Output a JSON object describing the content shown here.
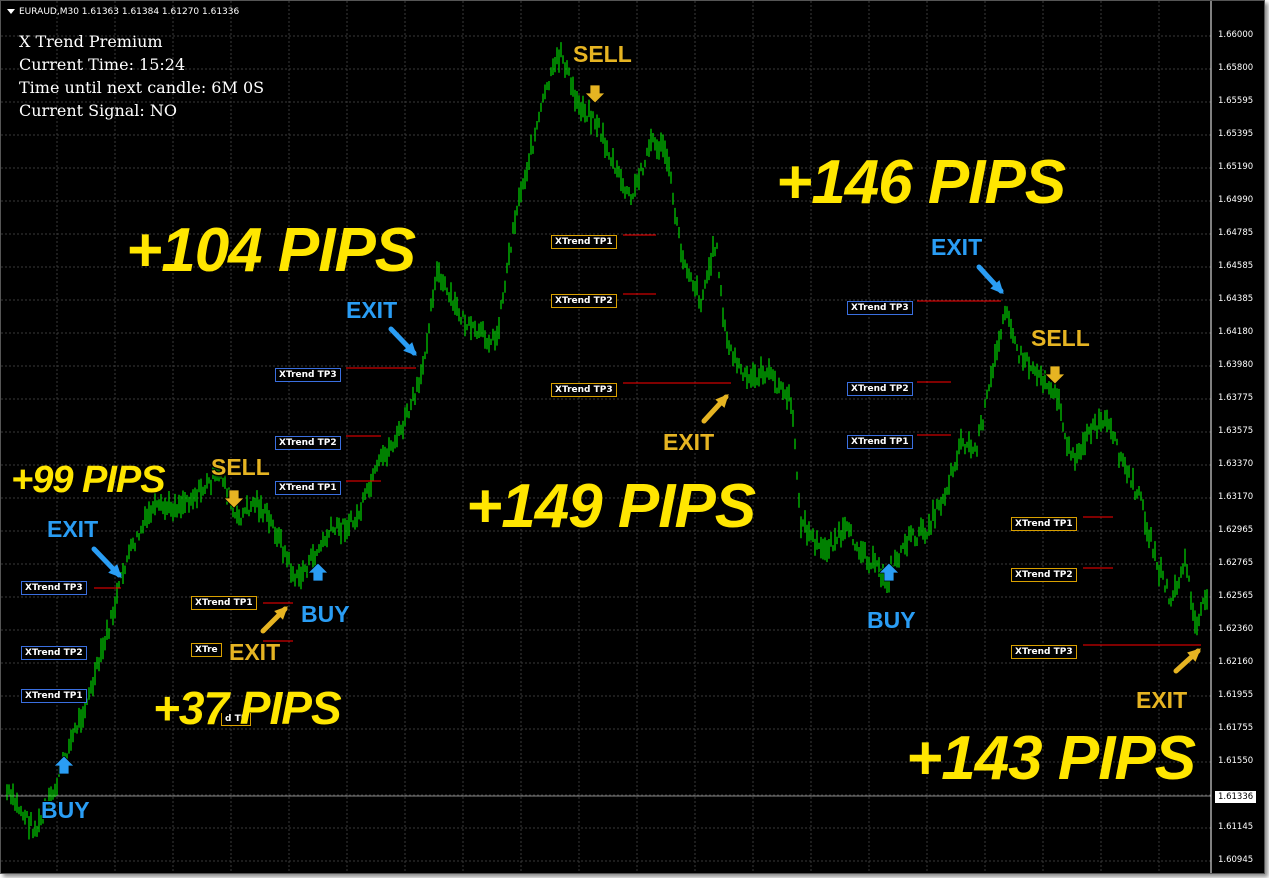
{
  "header": {
    "symbol_line": "EURAUD,M30  1.61363 1.61384 1.61270 1.61336"
  },
  "info": {
    "name": "X Trend Premium",
    "current_time": "Current Time: 15:24",
    "time_until_next": "Time until next candle: 6M 0S",
    "current_signal": "Current Signal:   NO"
  },
  "price_axis": {
    "labels": [
      "1.66000",
      "1.65800",
      "1.65595",
      "1.65395",
      "1.65190",
      "1.64990",
      "1.64785",
      "1.64585",
      "1.64385",
      "1.64180",
      "1.63980",
      "1.63775",
      "1.63575",
      "1.63370",
      "1.63170",
      "1.62965",
      "1.62765",
      "1.62565",
      "1.62360",
      "1.62160",
      "1.61955",
      "1.61755",
      "1.61550",
      "1.61145",
      "1.60945"
    ],
    "current_price": "1.61336"
  },
  "annotations": {
    "pips": [
      "+99 PIPS",
      "+104 PIPS",
      "+37 PIPS",
      "+149 PIPS",
      "+146 PIPS",
      "+143 PIPS"
    ],
    "signals": [
      "BUY",
      "EXIT",
      "SELL",
      "EXIT",
      "BUY",
      "EXIT",
      "SELL",
      "EXIT",
      "BUY",
      "EXIT",
      "SELL",
      "EXIT"
    ],
    "tp_labels": {
      "tp1": "XTrend TP1",
      "tp2": "XTrend TP2",
      "tp3": "XTrend TP3",
      "tp1_partial": "XTre",
      "tp1_fragment": "d TP"
    }
  },
  "colors": {
    "background": "#000000",
    "candles": "#00ff00",
    "grid": "#3a3a3a",
    "pips_text": "#ffe600",
    "buy_exit_blue": "#2a9df4",
    "sell_exit_gold": "#e6b422",
    "tp_line": "#ff0000"
  }
}
